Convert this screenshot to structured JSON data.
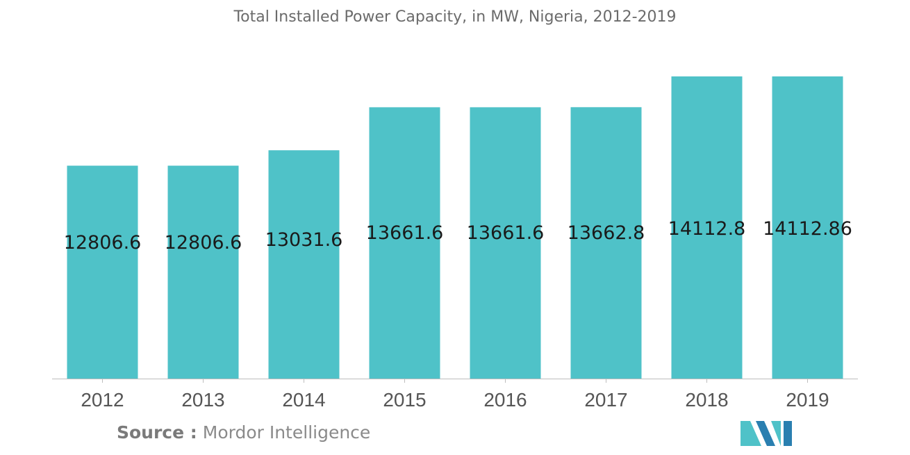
{
  "chart_data": {
    "type": "bar",
    "title": "Total Installed Power Capacity, in MW, Nigeria, 2012-2019",
    "categories": [
      "2012",
      "2013",
      "2014",
      "2015",
      "2016",
      "2017",
      "2018",
      "2019"
    ],
    "series": [
      {
        "values": [
          12806.6,
          12806.6,
          13031.6,
          13661.6,
          13661.6,
          13662.8,
          14112.8,
          14112.86
        ]
      }
    ],
    "data_labels": [
      "12806.6",
      "12806.6",
      "13031.6",
      "13661.6",
      "13661.6",
      "13662.8",
      "14112.8",
      "14112.86"
    ],
    "xlabel": "",
    "ylabel": "",
    "grid": false,
    "legend": "none",
    "bar_color": "#4fc2c8",
    "baseline_color": "#bdbdbd"
  },
  "source": {
    "label": "Source :",
    "text": "Mordor Intelligence"
  },
  "logo": {
    "icon": "mordor-intelligence-logo",
    "colors": [
      "#4fc2c8",
      "#2a7fb0"
    ]
  }
}
